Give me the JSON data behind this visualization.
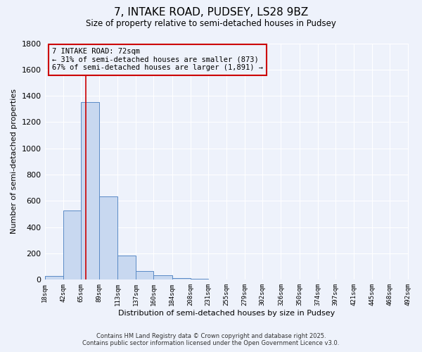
{
  "title_line1": "7, INTAKE ROAD, PUDSEY, LS28 9BZ",
  "title_line2": "Size of property relative to semi-detached houses in Pudsey",
  "xlabel": "Distribution of semi-detached houses by size in Pudsey",
  "ylabel": "Number of semi-detached properties",
  "bin_edges": [
    18,
    42,
    65,
    89,
    113,
    137,
    160,
    184,
    208,
    231,
    255,
    279,
    302,
    326,
    350,
    374,
    397,
    421,
    445,
    468,
    492
  ],
  "bar_heights": [
    30,
    525,
    1350,
    635,
    185,
    65,
    35,
    15,
    5,
    2,
    1,
    0,
    0,
    0,
    0,
    0,
    0,
    0,
    0,
    0
  ],
  "bar_color": "#c8d8f0",
  "bar_edge_color": "#5a8ac6",
  "ylim": [
    0,
    1800
  ],
  "yticks": [
    0,
    200,
    400,
    600,
    800,
    1000,
    1200,
    1400,
    1600,
    1800
  ],
  "property_size": 72,
  "vline_color": "#cc0000",
  "annotation_text": "7 INTAKE ROAD: 72sqm\n← 31% of semi-detached houses are smaller (873)\n67% of semi-detached houses are larger (1,891) →",
  "annotation_box_color": "#cc0000",
  "background_color": "#eef2fb",
  "grid_color": "#ffffff",
  "footer_line1": "Contains HM Land Registry data © Crown copyright and database right 2025.",
  "footer_line2": "Contains public sector information licensed under the Open Government Licence v3.0."
}
